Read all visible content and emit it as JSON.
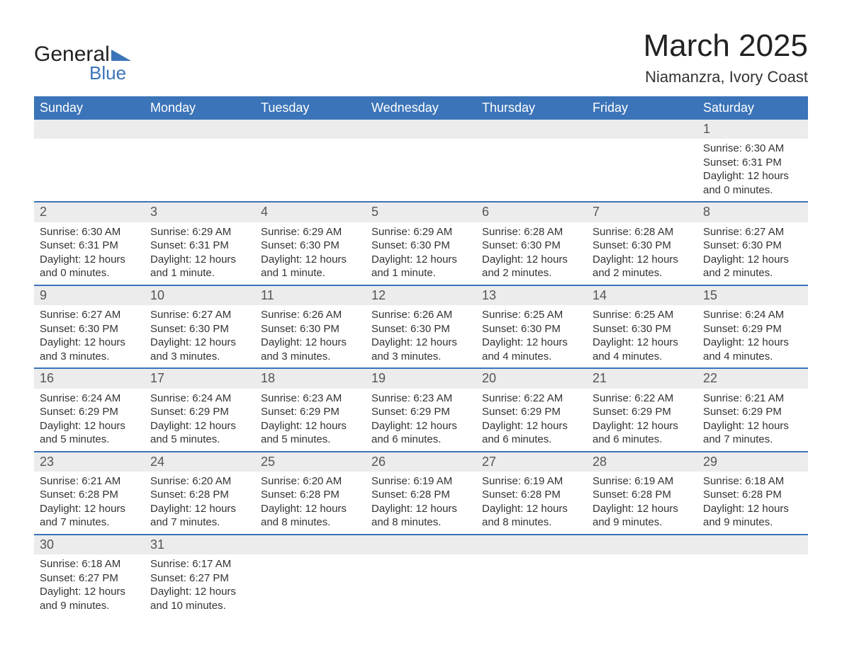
{
  "logo": {
    "general": "General",
    "blue": "Blue",
    "triangle_color": "#3b74b8"
  },
  "title": "March 2025",
  "location": "Niamanzra, Ivory Coast",
  "colors": {
    "header_bg": "#3b74b8",
    "header_text": "#ffffff",
    "daynum_bg": "#ececec",
    "border": "#3b74b8",
    "text": "#333333"
  },
  "weekdays": [
    "Sunday",
    "Monday",
    "Tuesday",
    "Wednesday",
    "Thursday",
    "Friday",
    "Saturday"
  ],
  "weeks": [
    {
      "nums": [
        "",
        "",
        "",
        "",
        "",
        "",
        "1"
      ],
      "cells": [
        null,
        null,
        null,
        null,
        null,
        null,
        {
          "sunrise": "Sunrise: 6:30 AM",
          "sunset": "Sunset: 6:31 PM",
          "day1": "Daylight: 12 hours",
          "day2": "and 0 minutes."
        }
      ]
    },
    {
      "nums": [
        "2",
        "3",
        "4",
        "5",
        "6",
        "7",
        "8"
      ],
      "cells": [
        {
          "sunrise": "Sunrise: 6:30 AM",
          "sunset": "Sunset: 6:31 PM",
          "day1": "Daylight: 12 hours",
          "day2": "and 0 minutes."
        },
        {
          "sunrise": "Sunrise: 6:29 AM",
          "sunset": "Sunset: 6:31 PM",
          "day1": "Daylight: 12 hours",
          "day2": "and 1 minute."
        },
        {
          "sunrise": "Sunrise: 6:29 AM",
          "sunset": "Sunset: 6:30 PM",
          "day1": "Daylight: 12 hours",
          "day2": "and 1 minute."
        },
        {
          "sunrise": "Sunrise: 6:29 AM",
          "sunset": "Sunset: 6:30 PM",
          "day1": "Daylight: 12 hours",
          "day2": "and 1 minute."
        },
        {
          "sunrise": "Sunrise: 6:28 AM",
          "sunset": "Sunset: 6:30 PM",
          "day1": "Daylight: 12 hours",
          "day2": "and 2 minutes."
        },
        {
          "sunrise": "Sunrise: 6:28 AM",
          "sunset": "Sunset: 6:30 PM",
          "day1": "Daylight: 12 hours",
          "day2": "and 2 minutes."
        },
        {
          "sunrise": "Sunrise: 6:27 AM",
          "sunset": "Sunset: 6:30 PM",
          "day1": "Daylight: 12 hours",
          "day2": "and 2 minutes."
        }
      ]
    },
    {
      "nums": [
        "9",
        "10",
        "11",
        "12",
        "13",
        "14",
        "15"
      ],
      "cells": [
        {
          "sunrise": "Sunrise: 6:27 AM",
          "sunset": "Sunset: 6:30 PM",
          "day1": "Daylight: 12 hours",
          "day2": "and 3 minutes."
        },
        {
          "sunrise": "Sunrise: 6:27 AM",
          "sunset": "Sunset: 6:30 PM",
          "day1": "Daylight: 12 hours",
          "day2": "and 3 minutes."
        },
        {
          "sunrise": "Sunrise: 6:26 AM",
          "sunset": "Sunset: 6:30 PM",
          "day1": "Daylight: 12 hours",
          "day2": "and 3 minutes."
        },
        {
          "sunrise": "Sunrise: 6:26 AM",
          "sunset": "Sunset: 6:30 PM",
          "day1": "Daylight: 12 hours",
          "day2": "and 3 minutes."
        },
        {
          "sunrise": "Sunrise: 6:25 AM",
          "sunset": "Sunset: 6:30 PM",
          "day1": "Daylight: 12 hours",
          "day2": "and 4 minutes."
        },
        {
          "sunrise": "Sunrise: 6:25 AM",
          "sunset": "Sunset: 6:30 PM",
          "day1": "Daylight: 12 hours",
          "day2": "and 4 minutes."
        },
        {
          "sunrise": "Sunrise: 6:24 AM",
          "sunset": "Sunset: 6:29 PM",
          "day1": "Daylight: 12 hours",
          "day2": "and 4 minutes."
        }
      ]
    },
    {
      "nums": [
        "16",
        "17",
        "18",
        "19",
        "20",
        "21",
        "22"
      ],
      "cells": [
        {
          "sunrise": "Sunrise: 6:24 AM",
          "sunset": "Sunset: 6:29 PM",
          "day1": "Daylight: 12 hours",
          "day2": "and 5 minutes."
        },
        {
          "sunrise": "Sunrise: 6:24 AM",
          "sunset": "Sunset: 6:29 PM",
          "day1": "Daylight: 12 hours",
          "day2": "and 5 minutes."
        },
        {
          "sunrise": "Sunrise: 6:23 AM",
          "sunset": "Sunset: 6:29 PM",
          "day1": "Daylight: 12 hours",
          "day2": "and 5 minutes."
        },
        {
          "sunrise": "Sunrise: 6:23 AM",
          "sunset": "Sunset: 6:29 PM",
          "day1": "Daylight: 12 hours",
          "day2": "and 6 minutes."
        },
        {
          "sunrise": "Sunrise: 6:22 AM",
          "sunset": "Sunset: 6:29 PM",
          "day1": "Daylight: 12 hours",
          "day2": "and 6 minutes."
        },
        {
          "sunrise": "Sunrise: 6:22 AM",
          "sunset": "Sunset: 6:29 PM",
          "day1": "Daylight: 12 hours",
          "day2": "and 6 minutes."
        },
        {
          "sunrise": "Sunrise: 6:21 AM",
          "sunset": "Sunset: 6:29 PM",
          "day1": "Daylight: 12 hours",
          "day2": "and 7 minutes."
        }
      ]
    },
    {
      "nums": [
        "23",
        "24",
        "25",
        "26",
        "27",
        "28",
        "29"
      ],
      "cells": [
        {
          "sunrise": "Sunrise: 6:21 AM",
          "sunset": "Sunset: 6:28 PM",
          "day1": "Daylight: 12 hours",
          "day2": "and 7 minutes."
        },
        {
          "sunrise": "Sunrise: 6:20 AM",
          "sunset": "Sunset: 6:28 PM",
          "day1": "Daylight: 12 hours",
          "day2": "and 7 minutes."
        },
        {
          "sunrise": "Sunrise: 6:20 AM",
          "sunset": "Sunset: 6:28 PM",
          "day1": "Daylight: 12 hours",
          "day2": "and 8 minutes."
        },
        {
          "sunrise": "Sunrise: 6:19 AM",
          "sunset": "Sunset: 6:28 PM",
          "day1": "Daylight: 12 hours",
          "day2": "and 8 minutes."
        },
        {
          "sunrise": "Sunrise: 6:19 AM",
          "sunset": "Sunset: 6:28 PM",
          "day1": "Daylight: 12 hours",
          "day2": "and 8 minutes."
        },
        {
          "sunrise": "Sunrise: 6:19 AM",
          "sunset": "Sunset: 6:28 PM",
          "day1": "Daylight: 12 hours",
          "day2": "and 9 minutes."
        },
        {
          "sunrise": "Sunrise: 6:18 AM",
          "sunset": "Sunset: 6:28 PM",
          "day1": "Daylight: 12 hours",
          "day2": "and 9 minutes."
        }
      ]
    },
    {
      "nums": [
        "30",
        "31",
        "",
        "",
        "",
        "",
        ""
      ],
      "cells": [
        {
          "sunrise": "Sunrise: 6:18 AM",
          "sunset": "Sunset: 6:27 PM",
          "day1": "Daylight: 12 hours",
          "day2": "and 9 minutes."
        },
        {
          "sunrise": "Sunrise: 6:17 AM",
          "sunset": "Sunset: 6:27 PM",
          "day1": "Daylight: 12 hours",
          "day2": "and 10 minutes."
        },
        null,
        null,
        null,
        null,
        null
      ]
    }
  ]
}
